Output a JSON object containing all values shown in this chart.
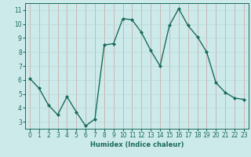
{
  "x": [
    0,
    1,
    2,
    3,
    4,
    5,
    6,
    7,
    8,
    9,
    10,
    11,
    12,
    13,
    14,
    15,
    16,
    17,
    18,
    19,
    20,
    21,
    22,
    23
  ],
  "y": [
    6.1,
    5.4,
    4.2,
    3.5,
    4.8,
    3.7,
    2.7,
    3.2,
    8.5,
    8.6,
    10.4,
    10.3,
    9.4,
    8.1,
    7.0,
    9.9,
    11.1,
    9.9,
    9.1,
    8.0,
    5.8,
    5.1,
    4.7,
    4.6
  ],
  "line_color": "#1a6b5a",
  "marker": "D",
  "markersize": 2.0,
  "linewidth": 1.0,
  "xlabel": "Humidex (Indice chaleur)",
  "xlim": [
    -0.5,
    23.5
  ],
  "ylim": [
    2.5,
    11.5
  ],
  "yticks": [
    3,
    4,
    5,
    6,
    7,
    8,
    9,
    10,
    11
  ],
  "xticks": [
    0,
    1,
    2,
    3,
    4,
    5,
    6,
    7,
    8,
    9,
    10,
    11,
    12,
    13,
    14,
    15,
    16,
    17,
    18,
    19,
    20,
    21,
    22,
    23
  ],
  "bg_color": "#cdeaea",
  "grid_color": "#b8d8d8",
  "line_grid_color": "#c8a0a0",
  "tick_color": "#1a6b5a",
  "label_color": "#1a6b5a",
  "xlabel_fontsize": 6.0,
  "tick_fontsize": 5.5
}
